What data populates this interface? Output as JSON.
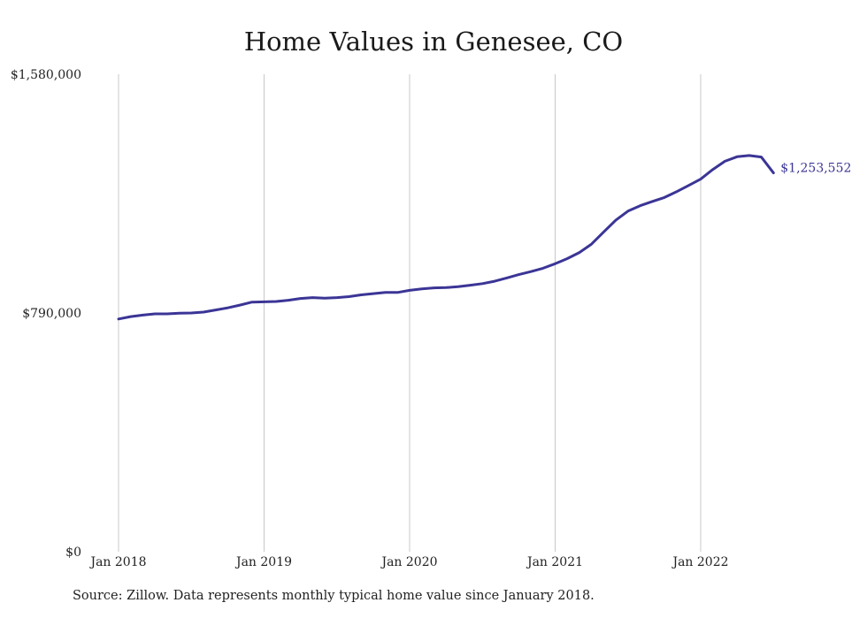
{
  "colors": {
    "line": "#3b3596",
    "grid": "#c8c8c8",
    "text": "#222222"
  },
  "chart_data": {
    "type": "line",
    "title": "Home Values in Genesee, CO",
    "source": "Source: Zillow. Data represents monthly typical home value since January 2018.",
    "xlabel": "",
    "ylabel": "",
    "ylim": [
      0,
      1580000
    ],
    "y_ticks": [
      {
        "value": 0,
        "label": "$0"
      },
      {
        "value": 790000,
        "label": "$790,000"
      },
      {
        "value": 1580000,
        "label": "$1,580,000"
      }
    ],
    "x_ticks": [
      {
        "date": "2018-01",
        "label": "Jan 2018"
      },
      {
        "date": "2019-01",
        "label": "Jan 2019"
      },
      {
        "date": "2020-01",
        "label": "Jan 2020"
      },
      {
        "date": "2021-01",
        "label": "Jan 2021"
      },
      {
        "date": "2022-01",
        "label": "Jan 2022"
      }
    ],
    "grid": "vertical",
    "end_label": "$1,253,552",
    "series": [
      {
        "x": [
          "2018-01",
          "2018-02",
          "2018-03",
          "2018-04",
          "2018-05",
          "2018-06",
          "2018-07",
          "2018-08",
          "2018-09",
          "2018-10",
          "2018-11",
          "2018-12",
          "2019-01",
          "2019-02",
          "2019-03",
          "2019-04",
          "2019-05",
          "2019-06",
          "2019-07",
          "2019-08",
          "2019-09",
          "2019-10",
          "2019-11",
          "2019-12",
          "2020-01",
          "2020-02",
          "2020-03",
          "2020-04",
          "2020-05",
          "2020-06",
          "2020-07",
          "2020-08",
          "2020-09",
          "2020-10",
          "2020-11",
          "2020-12",
          "2021-01",
          "2021-02",
          "2021-03",
          "2021-04",
          "2021-05",
          "2021-06",
          "2021-07",
          "2021-08",
          "2021-09",
          "2021-10",
          "2021-11",
          "2021-12",
          "2022-01",
          "2022-02",
          "2022-03",
          "2022-04",
          "2022-05",
          "2022-06",
          "2022-07"
        ],
        "values": [
          770000,
          778000,
          783000,
          787000,
          787000,
          789000,
          790000,
          793000,
          800000,
          807000,
          816000,
          826000,
          827000,
          828000,
          832000,
          838000,
          841000,
          839000,
          841000,
          844000,
          850000,
          854000,
          858000,
          858000,
          865000,
          870000,
          873000,
          874000,
          877000,
          882000,
          887000,
          895000,
          906000,
          917000,
          927000,
          938000,
          953000,
          970000,
          990000,
          1018000,
          1058000,
          1097000,
          1127000,
          1145000,
          1159000,
          1172000,
          1191000,
          1212000,
          1233000,
          1265000,
          1292000,
          1307000,
          1311000,
          1306000,
          1253552
        ]
      }
    ]
  }
}
